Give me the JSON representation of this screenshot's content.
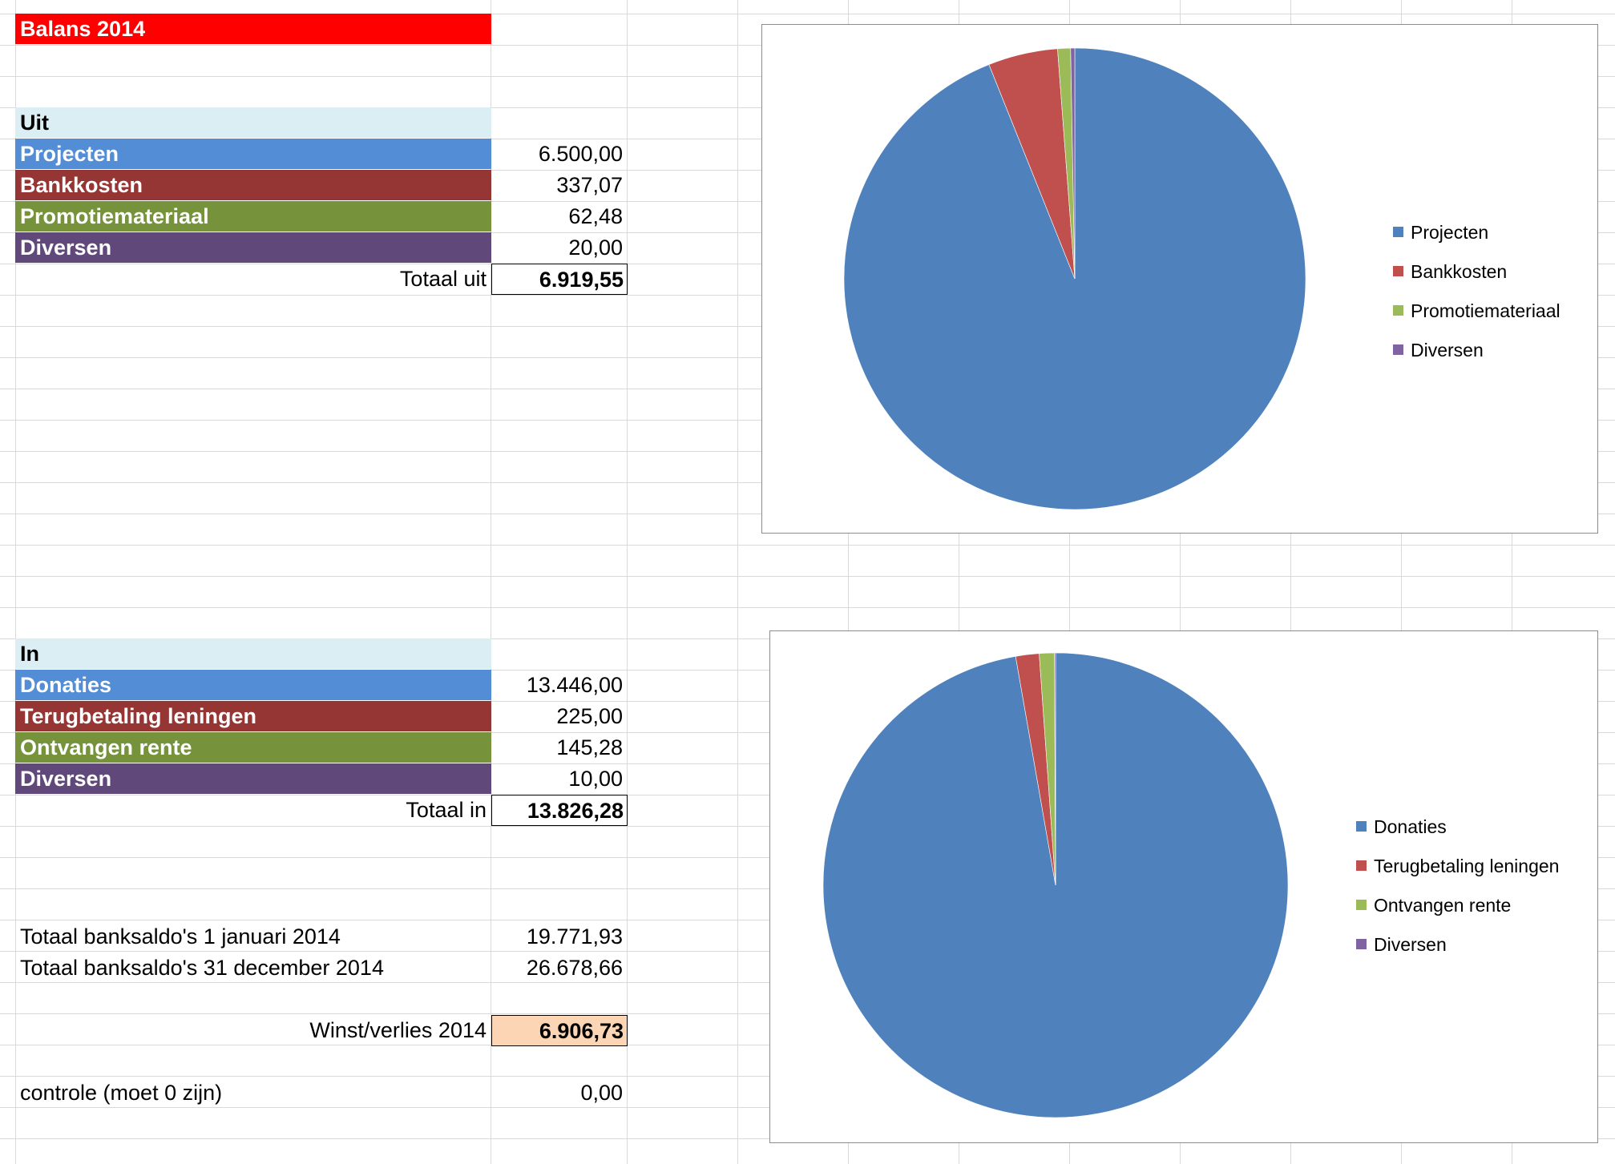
{
  "sheet": {
    "title": "Balans 2014",
    "uit": {
      "header": "Uit",
      "rows": [
        {
          "label": "Projecten",
          "value": "6.500,00"
        },
        {
          "label": "Bankkosten",
          "value": "337,07"
        },
        {
          "label": "Promotiemateriaal",
          "value": "62,48"
        },
        {
          "label": "Diversen",
          "value": "20,00"
        }
      ],
      "total_label": "Totaal uit",
      "total_value": "6.919,55"
    },
    "in": {
      "header": "In",
      "rows": [
        {
          "label": "Donaties",
          "value": "13.446,00"
        },
        {
          "label": "Terugbetaling leningen",
          "value": "225,00"
        },
        {
          "label": "Ontvangen rente",
          "value": "145,28"
        },
        {
          "label": "Diversen",
          "value": "10,00"
        }
      ],
      "total_label": "Totaal in",
      "total_value": "13.826,28"
    },
    "saldo_start_label": "Totaal banksaldo's 1 januari 2014",
    "saldo_start_value": "19.771,93",
    "saldo_end_label": "Totaal banksaldo's 31 december 2014",
    "saldo_end_value": "26.678,66",
    "result_label": "Winst/verlies 2014",
    "result_value": "6.906,73",
    "check_label": "controle (moet 0 zijn)",
    "check_value": "0,00"
  },
  "colors": {
    "title_red": "#ff0000",
    "header_blue_light": "#daeef3",
    "row_blue": "#538dd5",
    "row_red": "#963634",
    "row_green": "#76933c",
    "row_purple": "#60497a",
    "highlight_peach": "#fcd5b4"
  },
  "chart_data": [
    {
      "type": "pie",
      "title": "",
      "categories": [
        "Projecten",
        "Bankkosten",
        "Promotiemateriaal",
        "Diversen"
      ],
      "values": [
        6500.0,
        337.07,
        62.48,
        20.0
      ],
      "colors": [
        "#4f81bd",
        "#c0504d",
        "#9bbb59",
        "#8064a2"
      ],
      "legend": "right"
    },
    {
      "type": "pie",
      "title": "",
      "categories": [
        "Donaties",
        "Terugbetaling leningen",
        "Ontvangen rente",
        "Diversen"
      ],
      "values": [
        13446.0,
        225.0,
        145.28,
        10.0
      ],
      "colors": [
        "#4f81bd",
        "#c0504d",
        "#9bbb59",
        "#8064a2"
      ],
      "legend": "right"
    }
  ]
}
